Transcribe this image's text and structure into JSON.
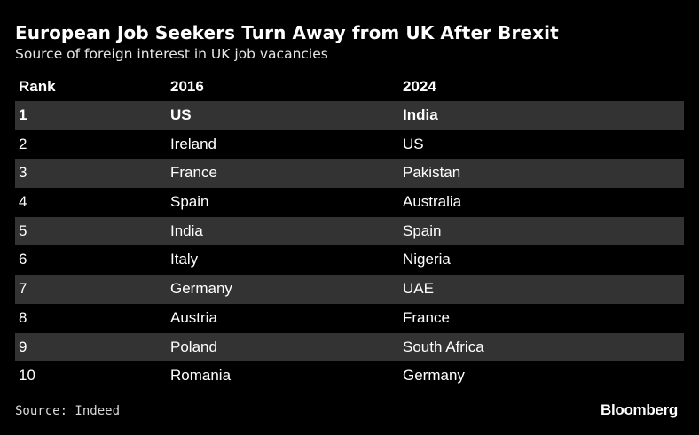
{
  "chart_data": {
    "type": "table",
    "title": "European Job Seekers Turn Away from UK After Brexit",
    "subtitle": "Source of foreign interest in UK job vacancies",
    "columns": [
      "Rank",
      "2016",
      "2024"
    ],
    "rows": [
      [
        "1",
        "US",
        "India"
      ],
      [
        "2",
        "Ireland",
        "US"
      ],
      [
        "3",
        "France",
        "Pakistan"
      ],
      [
        "4",
        "Spain",
        "Australia"
      ],
      [
        "5",
        "India",
        "Spain"
      ],
      [
        "6",
        "Italy",
        "Nigeria"
      ],
      [
        "7",
        "Germany",
        "UAE"
      ],
      [
        "8",
        "Austria",
        "France"
      ],
      [
        "9",
        "Poland",
        "South Africa"
      ],
      [
        "10",
        "Romania",
        "Germany"
      ]
    ],
    "source": "Source: Indeed",
    "brand": "Bloomberg"
  },
  "colors": {
    "background": "#000000",
    "row_shade": "#333333",
    "text": "#ffffff"
  }
}
